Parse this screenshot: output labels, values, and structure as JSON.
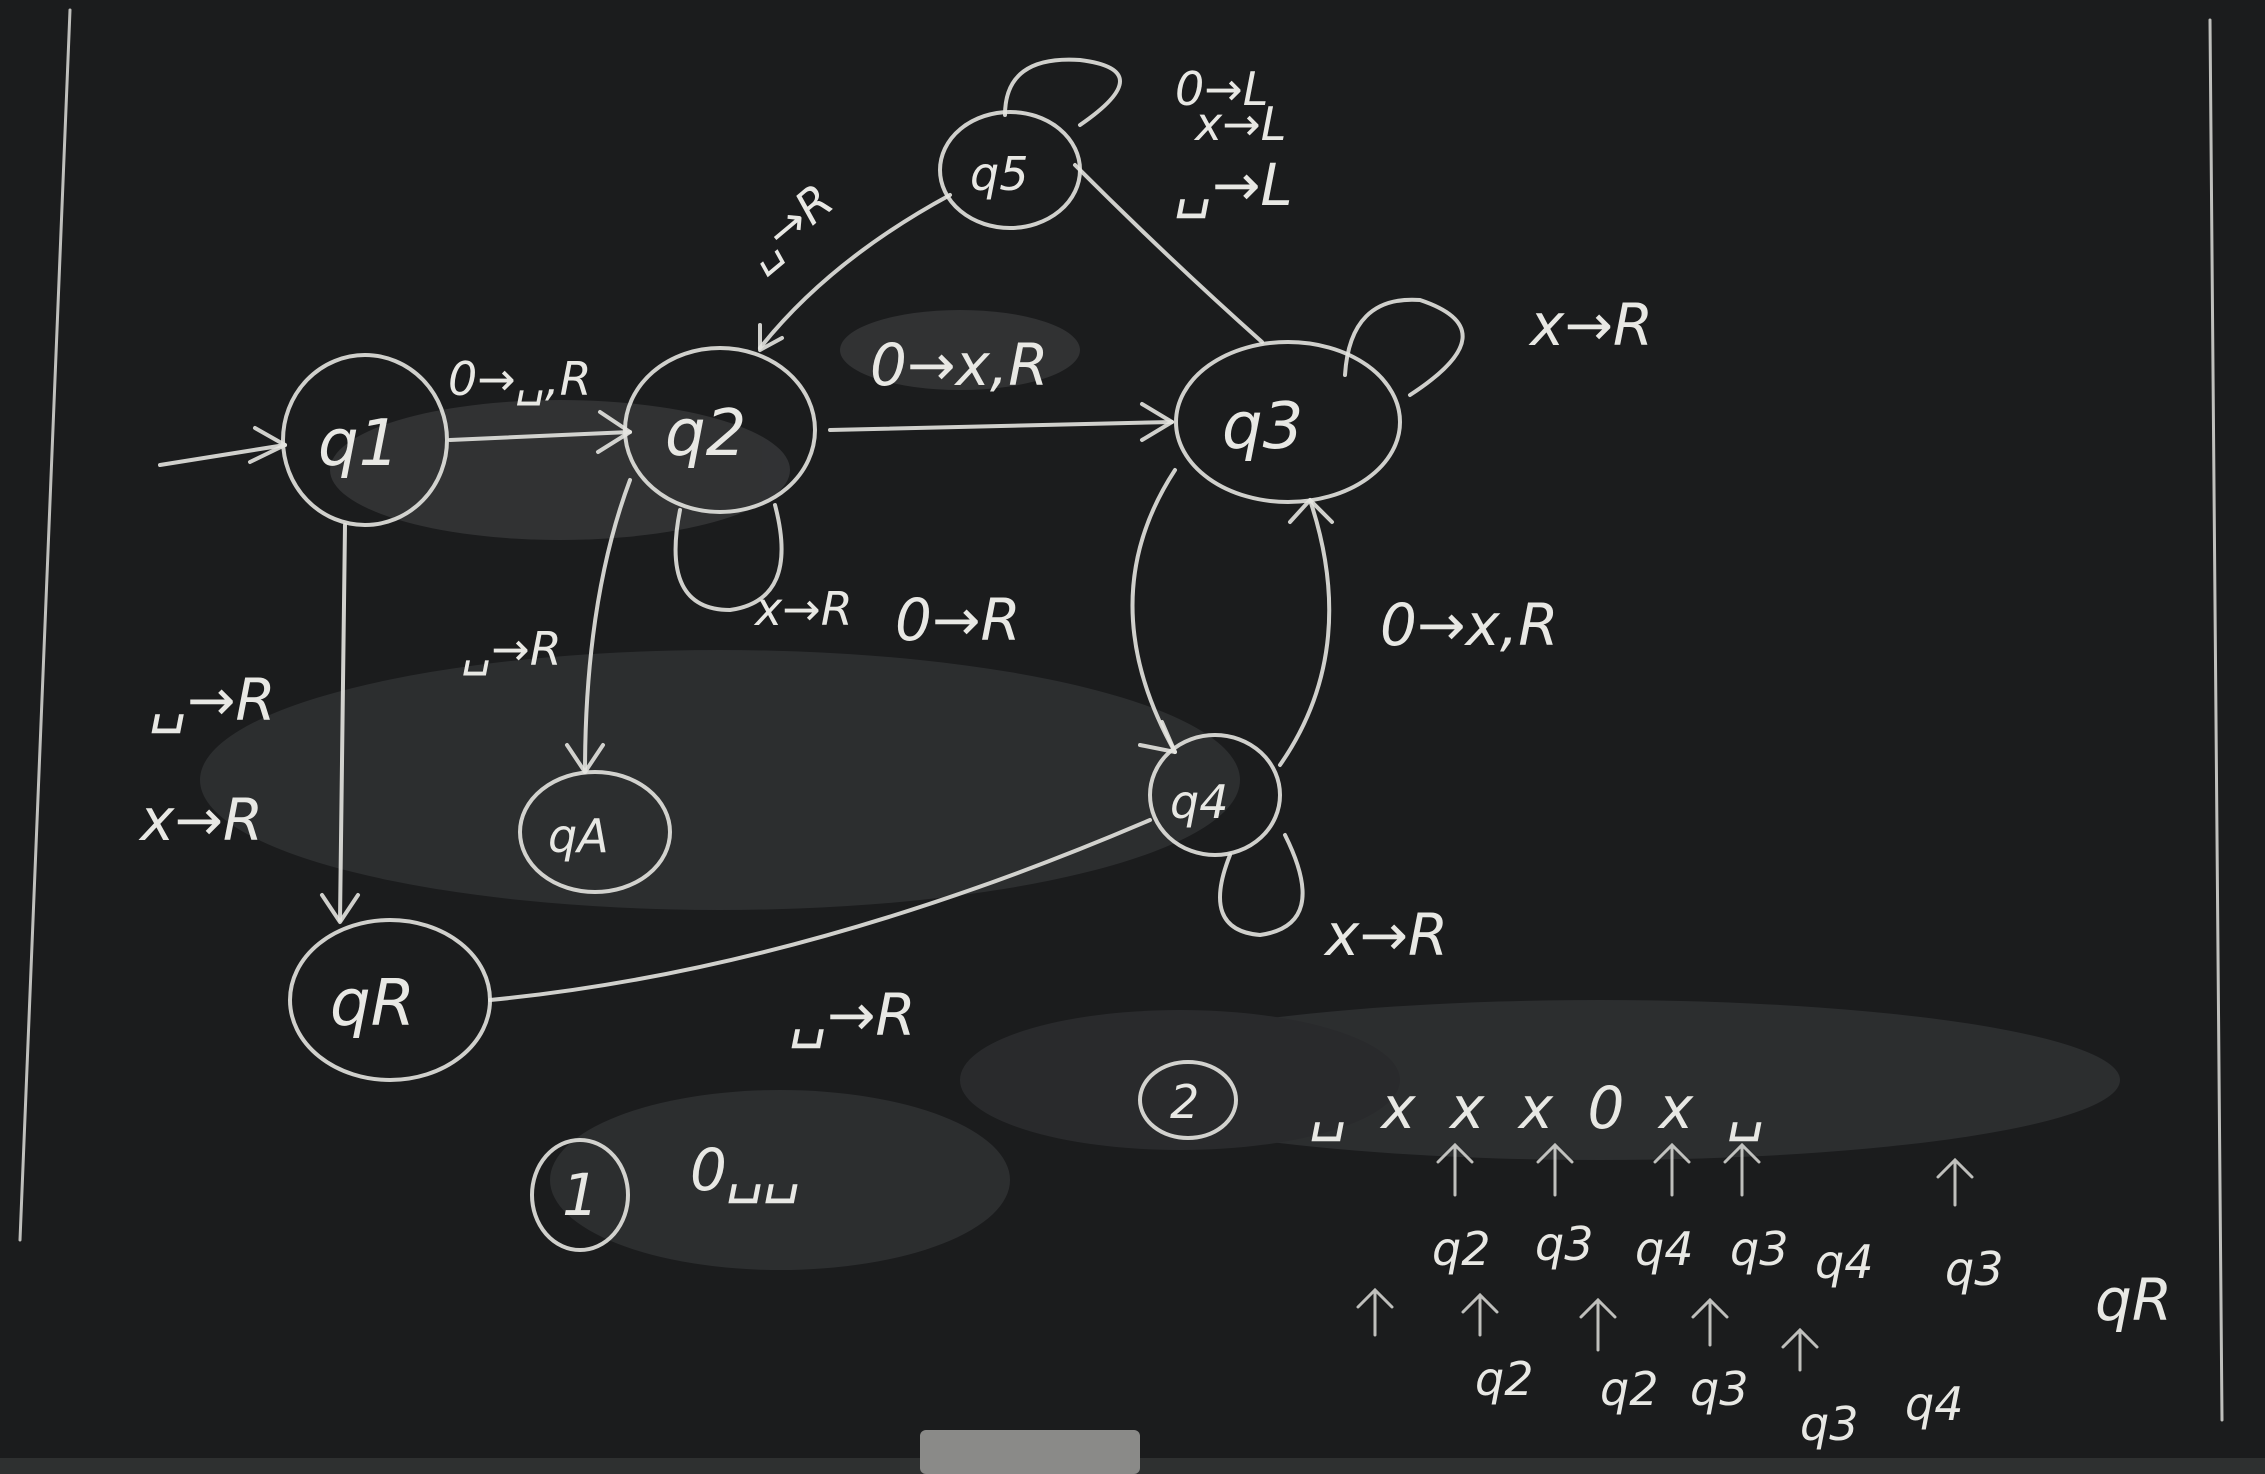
{
  "colors": {
    "board": "#1b1c1d",
    "chalk": "#e4e4e0",
    "smudge": "#4b4d50"
  },
  "states": {
    "q1": "q1",
    "q2": "q2",
    "q3": "q3",
    "q4": "q4",
    "q5": "q5",
    "qA": "qA",
    "qR": "qR"
  },
  "transitions": {
    "q1_q2": "0→␣,R",
    "q1_qR_a": "␣→R",
    "q1_qR_b": "x→R",
    "q2_q5": "␣→R",
    "q2_q3": "0→x,R",
    "q2_loop": "x→R",
    "q2_qA": "␣→R",
    "q5_loop_a": "0→L",
    "q5_loop_b": "x→L",
    "q5_loop_c": "␣→L",
    "q3_loop": "x→R",
    "q3_q4": "0→R",
    "q4_q3": "0→x,R",
    "q4_loop": "x→R",
    "q4_qR": "␣→R"
  },
  "examples": {
    "ex1_num": "1",
    "ex1_tape": "0␣␣",
    "ex2_num": "2",
    "ex2_tape": "␣ x x x 0 x ␣",
    "trace_row1": [
      "q2",
      "q3",
      "q4",
      "q3",
      "q4",
      "q3",
      "qR"
    ],
    "trace_row2": [
      "q2",
      "q2",
      "q3",
      "q3",
      "q4"
    ]
  }
}
